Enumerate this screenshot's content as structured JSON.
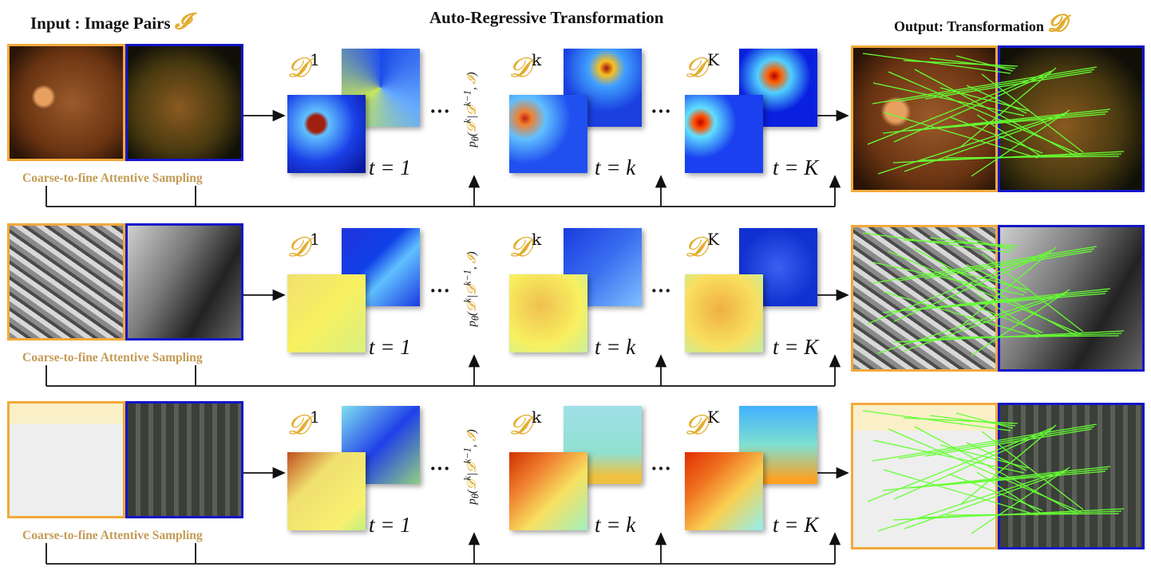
{
  "header": {
    "input_label": "Input : Image Pairs",
    "input_symbol": "𝓘",
    "center_title": "Auto-Regressive Transformation",
    "output_label": "Output: Transformation",
    "output_symbol": "𝓓"
  },
  "sampling_label": "Coarse-to-fine Attentive Sampling",
  "dots": "···",
  "d_symbol": "𝓓",
  "sup_first": "1",
  "sup_mid": "k",
  "sup_last": "K",
  "t_first": "t = 1",
  "t_mid": "t = k",
  "t_last": "t = K",
  "prob": {
    "p": "p",
    "theta": "θ",
    "open": "(",
    "d": "𝓓",
    "dk": "k",
    "bar": "|",
    "dprev": "k−1",
    "comma": ", ",
    "i": "𝓘",
    "close": ")"
  },
  "colors": {
    "source_border": "#f2a93b",
    "target_border": "#1515c8",
    "match_line": "#66ff33",
    "accent": "#e3ad2e"
  },
  "rows": [
    {
      "name": "retina"
    },
    {
      "name": "industrial"
    },
    {
      "name": "map-satellite"
    }
  ]
}
